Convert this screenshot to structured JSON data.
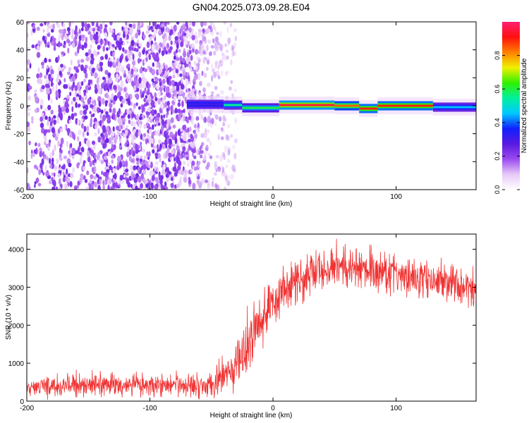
{
  "figure": {
    "title": "GN04.2025.073.09.28.E04"
  },
  "chart_data": [
    {
      "type": "heatmap",
      "title": "GN04.2025.073.09.28.E04",
      "xlabel": "Height of straight line (km)",
      "ylabel": "Frequency (Hz)",
      "xlim": [
        -200,
        165
      ],
      "ylim": [
        -60,
        60
      ],
      "x_ticks": [
        "-200",
        "-100",
        "0",
        "100"
      ],
      "y_ticks": [
        "60",
        "40",
        "20",
        "0",
        "-20",
        "-40",
        "-60"
      ],
      "x_tick_values": [
        -200,
        -100,
        0,
        100
      ],
      "y_tick_values": [
        60,
        40,
        20,
        0,
        -20,
        -40,
        -60
      ],
      "colorbar": {
        "label": "Normalized spectral amplitude",
        "range": [
          0,
          1
        ],
        "ticks": [
          "0.0",
          "0.2",
          "0.4",
          "0.6",
          "0.8"
        ],
        "tick_values": [
          0,
          0.2,
          0.4,
          0.6,
          0.8
        ],
        "colormap": [
          "#ffffff",
          "#e7c9f7",
          "#9a4bef",
          "#5a19e0",
          "#1020ff",
          "#00c8ff",
          "#00f0a0",
          "#30f000",
          "#f0f000",
          "#ff8000",
          "#ff1010",
          "#ff2070"
        ]
      },
      "noise_region": {
        "x_range": [
          -200,
          -40
        ],
        "y_range": [
          -60,
          60
        ],
        "typical_amplitude": [
          0.05,
          0.25
        ]
      },
      "signal_band": {
        "x_range": [
          -70,
          165
        ],
        "center_frequency": 0,
        "segments": [
          {
            "x": [
              -70,
              -40
            ],
            "y": 1,
            "half_width": 1.5,
            "amplitude": 0.3
          },
          {
            "x": [
              -40,
              -25
            ],
            "y": 0.5,
            "half_width": 1.5,
            "amplitude": 0.55
          },
          {
            "x": [
              -25,
              5
            ],
            "y": -1.5,
            "half_width": 1.5,
            "amplitude": 0.6
          },
          {
            "x": [
              5,
              50
            ],
            "y": 0.5,
            "half_width": 1.5,
            "amplitude": 0.95
          },
          {
            "x": [
              50,
              70
            ],
            "y": 0,
            "half_width": 1.5,
            "amplitude": 0.85
          },
          {
            "x": [
              70,
              85
            ],
            "y": -2,
            "half_width": 1.5,
            "amplitude": 0.9
          },
          {
            "x": [
              85,
              130
            ],
            "y": 0,
            "half_width": 1.5,
            "amplitude": 0.9
          },
          {
            "x": [
              130,
              165
            ],
            "y": -1,
            "half_width": 1.5,
            "amplitude": 0.45
          }
        ]
      }
    },
    {
      "type": "line",
      "xlabel": "Height of straight line (km)",
      "ylabel": "SNR (10 * v/v)",
      "xlim": [
        -200,
        165
      ],
      "ylim": [
        0,
        4400
      ],
      "x_ticks": [
        "-200",
        "-100",
        "0",
        "100"
      ],
      "y_ticks": [
        "0",
        "1000",
        "2000",
        "3000",
        "4000"
      ],
      "x_tick_values": [
        -200,
        -100,
        0,
        100
      ],
      "y_tick_values": [
        0,
        1000,
        2000,
        3000,
        4000
      ],
      "line_color": "#f03232",
      "series": [
        {
          "x": [
            -200,
            -180,
            -160,
            -140,
            -120,
            -100,
            -80,
            -60,
            -50,
            -40,
            -30,
            -25,
            -20,
            -15,
            -10,
            -5,
            0,
            10,
            20,
            30,
            40,
            50,
            60,
            70,
            80,
            90,
            100,
            110,
            120,
            130,
            140,
            150,
            160,
            165
          ],
          "y": [
            350,
            400,
            420,
            420,
            420,
            420,
            420,
            450,
            480,
            600,
            900,
            1150,
            1500,
            1900,
            2200,
            2400,
            2700,
            2950,
            3200,
            3350,
            3450,
            3500,
            3550,
            3500,
            3450,
            3400,
            3350,
            3300,
            3250,
            3200,
            3150,
            3100,
            3050,
            3000
          ],
          "band": [
            200,
            300,
            320,
            320,
            320,
            320,
            320,
            350,
            400,
            500,
            700,
            800,
            900,
            900,
            850,
            800,
            750,
            700,
            650,
            650,
            650,
            650,
            650,
            600,
            600,
            600,
            550,
            550,
            550,
            550,
            550,
            550,
            550,
            550
          ]
        }
      ]
    }
  ]
}
